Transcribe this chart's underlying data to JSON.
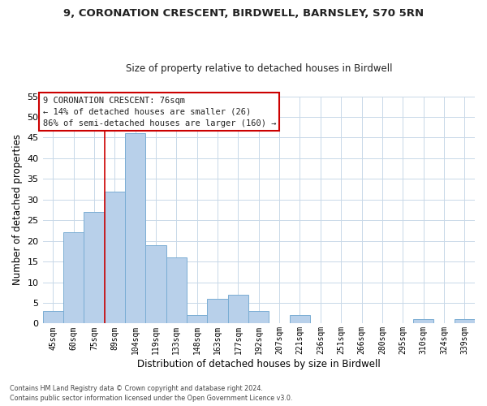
{
  "title1": "9, CORONATION CRESCENT, BIRDWELL, BARNSLEY, S70 5RN",
  "title2": "Size of property relative to detached houses in Birdwell",
  "xlabel": "Distribution of detached houses by size in Birdwell",
  "ylabel": "Number of detached properties",
  "bar_color": "#b8d0ea",
  "bar_edge_color": "#7aadd4",
  "categories": [
    "45sqm",
    "60sqm",
    "75sqm",
    "89sqm",
    "104sqm",
    "119sqm",
    "133sqm",
    "148sqm",
    "163sqm",
    "177sqm",
    "192sqm",
    "207sqm",
    "221sqm",
    "236sqm",
    "251sqm",
    "266sqm",
    "280sqm",
    "295sqm",
    "310sqm",
    "324sqm",
    "339sqm"
  ],
  "values": [
    3,
    22,
    27,
    32,
    46,
    19,
    16,
    2,
    6,
    7,
    3,
    0,
    2,
    0,
    0,
    0,
    0,
    0,
    1,
    0,
    1
  ],
  "ylim": [
    0,
    55
  ],
  "yticks": [
    0,
    5,
    10,
    15,
    20,
    25,
    30,
    35,
    40,
    45,
    50,
    55
  ],
  "annotation_lines": [
    "9 CORONATION CRESCENT: 76sqm",
    "← 14% of detached houses are smaller (26)",
    "86% of semi-detached houses are larger (160) →"
  ],
  "red_line_x": 2.5,
  "footnote1": "Contains HM Land Registry data © Crown copyright and database right 2024.",
  "footnote2": "Contains public sector information licensed under the Open Government Licence v3.0.",
  "background_color": "#ffffff",
  "grid_color": "#c8d8e8"
}
